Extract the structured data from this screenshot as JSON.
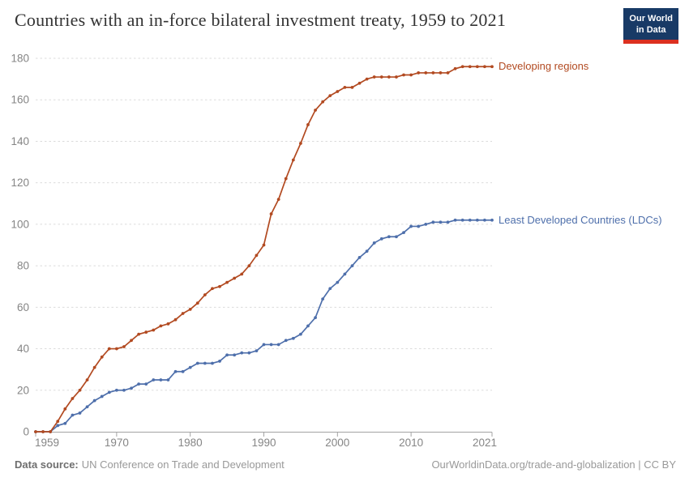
{
  "header": {
    "title": "Countries with an in-force bilateral investment treaty, 1959 to 2021",
    "logo": {
      "line1": "Our World",
      "line2": "in Data",
      "bg_color": "#183a66",
      "bar_color": "#dc3020"
    }
  },
  "footer": {
    "source_label": "Data source:",
    "source_text": "UN Conference on Trade and Development",
    "credit": "OurWorldinData.org/trade-and-globalization | CC BY"
  },
  "chart_data": {
    "type": "line",
    "title": "Countries with an in-force bilateral investment treaty, 1959 to 2021",
    "xlabel": "",
    "ylabel": "",
    "xlim": [
      1959,
      2021
    ],
    "ylim": [
      0,
      180
    ],
    "xticks": [
      1959,
      1970,
      1980,
      1990,
      2000,
      2010,
      2021
    ],
    "yticks": [
      0,
      20,
      40,
      60,
      80,
      100,
      120,
      140,
      160,
      180
    ],
    "grid": "horizontal-dashed",
    "legend_position": "line-end-labels",
    "x": [
      1959,
      1960,
      1961,
      1962,
      1963,
      1964,
      1965,
      1966,
      1967,
      1968,
      1969,
      1970,
      1971,
      1972,
      1973,
      1974,
      1975,
      1976,
      1977,
      1978,
      1979,
      1980,
      1981,
      1982,
      1983,
      1984,
      1985,
      1986,
      1987,
      1988,
      1989,
      1990,
      1991,
      1992,
      1993,
      1994,
      1995,
      1996,
      1997,
      1998,
      1999,
      2000,
      2001,
      2002,
      2003,
      2004,
      2005,
      2006,
      2007,
      2008,
      2009,
      2010,
      2011,
      2012,
      2013,
      2014,
      2015,
      2016,
      2017,
      2018,
      2019,
      2020,
      2021
    ],
    "series": [
      {
        "name": "Developing regions",
        "color": "#b24a21",
        "values": [
          0,
          0,
          0,
          5,
          11,
          16,
          20,
          25,
          31,
          36,
          40,
          40,
          41,
          44,
          47,
          48,
          49,
          51,
          52,
          54,
          57,
          59,
          62,
          66,
          69,
          70,
          72,
          74,
          76,
          80,
          85,
          90,
          105,
          112,
          122,
          131,
          139,
          148,
          155,
          159,
          162,
          164,
          166,
          166,
          168,
          170,
          171,
          171,
          171,
          171,
          172,
          172,
          173,
          173,
          173,
          173,
          173,
          175,
          176,
          176,
          176,
          176,
          176
        ]
      },
      {
        "name": "Least Developed Countries (LDCs)",
        "color": "#4e6fab",
        "values": [
          0,
          0,
          0,
          3,
          4,
          8,
          9,
          12,
          15,
          17,
          19,
          20,
          20,
          21,
          23,
          23,
          25,
          25,
          25,
          29,
          29,
          31,
          33,
          33,
          33,
          34,
          37,
          37,
          38,
          38,
          39,
          42,
          42,
          42,
          44,
          45,
          47,
          51,
          55,
          64,
          69,
          72,
          76,
          80,
          84,
          87,
          91,
          93,
          94,
          94,
          96,
          99,
          99,
          100,
          101,
          101,
          101,
          102,
          102,
          102,
          102,
          102,
          102
        ]
      }
    ]
  }
}
